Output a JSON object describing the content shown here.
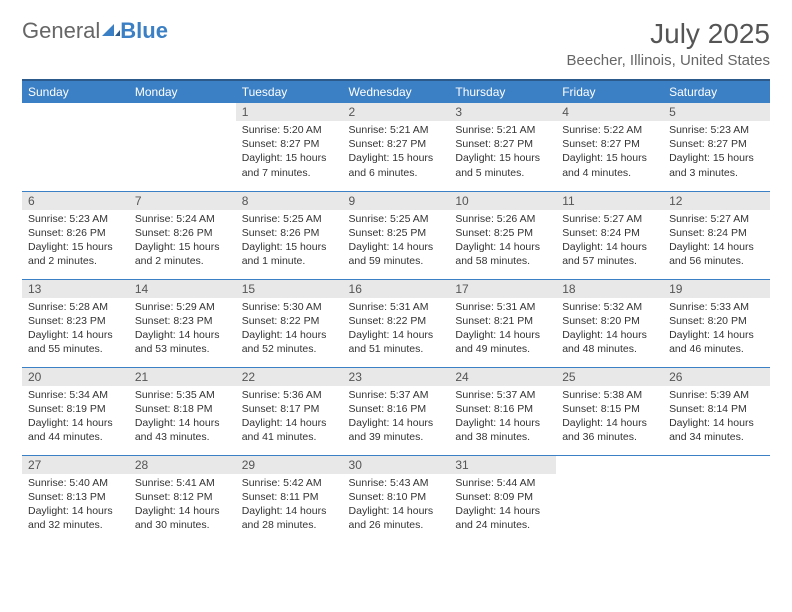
{
  "logo": {
    "text1": "General",
    "text2": "Blue"
  },
  "title": "July 2025",
  "location": "Beecher, Illinois, United States",
  "colors": {
    "header_bg": "#3b7fc4",
    "header_border": "#2c5a8a",
    "daynum_bg": "#e8e8e8",
    "text": "#333333",
    "muted": "#666666"
  },
  "weekdays": [
    "Sunday",
    "Monday",
    "Tuesday",
    "Wednesday",
    "Thursday",
    "Friday",
    "Saturday"
  ],
  "weeks": [
    [
      null,
      null,
      {
        "n": "1",
        "sr": "5:20 AM",
        "ss": "8:27 PM",
        "dl": "15 hours and 7 minutes."
      },
      {
        "n": "2",
        "sr": "5:21 AM",
        "ss": "8:27 PM",
        "dl": "15 hours and 6 minutes."
      },
      {
        "n": "3",
        "sr": "5:21 AM",
        "ss": "8:27 PM",
        "dl": "15 hours and 5 minutes."
      },
      {
        "n": "4",
        "sr": "5:22 AM",
        "ss": "8:27 PM",
        "dl": "15 hours and 4 minutes."
      },
      {
        "n": "5",
        "sr": "5:23 AM",
        "ss": "8:27 PM",
        "dl": "15 hours and 3 minutes."
      }
    ],
    [
      {
        "n": "6",
        "sr": "5:23 AM",
        "ss": "8:26 PM",
        "dl": "15 hours and 2 minutes."
      },
      {
        "n": "7",
        "sr": "5:24 AM",
        "ss": "8:26 PM",
        "dl": "15 hours and 2 minutes."
      },
      {
        "n": "8",
        "sr": "5:25 AM",
        "ss": "8:26 PM",
        "dl": "15 hours and 1 minute."
      },
      {
        "n": "9",
        "sr": "5:25 AM",
        "ss": "8:25 PM",
        "dl": "14 hours and 59 minutes."
      },
      {
        "n": "10",
        "sr": "5:26 AM",
        "ss": "8:25 PM",
        "dl": "14 hours and 58 minutes."
      },
      {
        "n": "11",
        "sr": "5:27 AM",
        "ss": "8:24 PM",
        "dl": "14 hours and 57 minutes."
      },
      {
        "n": "12",
        "sr": "5:27 AM",
        "ss": "8:24 PM",
        "dl": "14 hours and 56 minutes."
      }
    ],
    [
      {
        "n": "13",
        "sr": "5:28 AM",
        "ss": "8:23 PM",
        "dl": "14 hours and 55 minutes."
      },
      {
        "n": "14",
        "sr": "5:29 AM",
        "ss": "8:23 PM",
        "dl": "14 hours and 53 minutes."
      },
      {
        "n": "15",
        "sr": "5:30 AM",
        "ss": "8:22 PM",
        "dl": "14 hours and 52 minutes."
      },
      {
        "n": "16",
        "sr": "5:31 AM",
        "ss": "8:22 PM",
        "dl": "14 hours and 51 minutes."
      },
      {
        "n": "17",
        "sr": "5:31 AM",
        "ss": "8:21 PM",
        "dl": "14 hours and 49 minutes."
      },
      {
        "n": "18",
        "sr": "5:32 AM",
        "ss": "8:20 PM",
        "dl": "14 hours and 48 minutes."
      },
      {
        "n": "19",
        "sr": "5:33 AM",
        "ss": "8:20 PM",
        "dl": "14 hours and 46 minutes."
      }
    ],
    [
      {
        "n": "20",
        "sr": "5:34 AM",
        "ss": "8:19 PM",
        "dl": "14 hours and 44 minutes."
      },
      {
        "n": "21",
        "sr": "5:35 AM",
        "ss": "8:18 PM",
        "dl": "14 hours and 43 minutes."
      },
      {
        "n": "22",
        "sr": "5:36 AM",
        "ss": "8:17 PM",
        "dl": "14 hours and 41 minutes."
      },
      {
        "n": "23",
        "sr": "5:37 AM",
        "ss": "8:16 PM",
        "dl": "14 hours and 39 minutes."
      },
      {
        "n": "24",
        "sr": "5:37 AM",
        "ss": "8:16 PM",
        "dl": "14 hours and 38 minutes."
      },
      {
        "n": "25",
        "sr": "5:38 AM",
        "ss": "8:15 PM",
        "dl": "14 hours and 36 minutes."
      },
      {
        "n": "26",
        "sr": "5:39 AM",
        "ss": "8:14 PM",
        "dl": "14 hours and 34 minutes."
      }
    ],
    [
      {
        "n": "27",
        "sr": "5:40 AM",
        "ss": "8:13 PM",
        "dl": "14 hours and 32 minutes."
      },
      {
        "n": "28",
        "sr": "5:41 AM",
        "ss": "8:12 PM",
        "dl": "14 hours and 30 minutes."
      },
      {
        "n": "29",
        "sr": "5:42 AM",
        "ss": "8:11 PM",
        "dl": "14 hours and 28 minutes."
      },
      {
        "n": "30",
        "sr": "5:43 AM",
        "ss": "8:10 PM",
        "dl": "14 hours and 26 minutes."
      },
      {
        "n": "31",
        "sr": "5:44 AM",
        "ss": "8:09 PM",
        "dl": "14 hours and 24 minutes."
      },
      null,
      null
    ]
  ],
  "labels": {
    "sunrise": "Sunrise:",
    "sunset": "Sunset:",
    "daylight": "Daylight:"
  }
}
